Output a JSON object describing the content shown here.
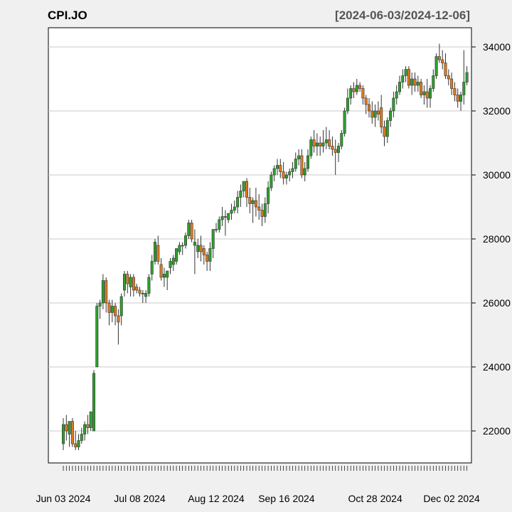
{
  "chart_data": {
    "type": "candlestick",
    "title": "CPI.JO",
    "date_range": "[2024-06-03/2024-12-06]",
    "ylim": [
      21000,
      34600
    ],
    "y_ticks": [
      22000,
      24000,
      26000,
      28000,
      30000,
      32000,
      34000
    ],
    "y_tick_labels": [
      "22000",
      "24000",
      "26000",
      "28000",
      "30000",
      "32000",
      "34000"
    ],
    "x_labels": [
      {
        "label": "Jun 03 2024",
        "index": 0
      },
      {
        "label": "Jul 08 2024",
        "index": 25
      },
      {
        "label": "Aug 12 2024",
        "index": 50
      },
      {
        "label": "Sep 16 2024",
        "index": 73
      },
      {
        "label": "Oct 28 2024",
        "index": 102
      },
      {
        "label": "Dec 02 2024",
        "index": 127
      }
    ],
    "grid": true,
    "up_color": "#2ca02c",
    "down_color": "#e07a20",
    "ohlc_fields": [
      "open",
      "high",
      "low",
      "close"
    ],
    "ohlc": [
      [
        21600,
        22400,
        21400,
        22200
      ],
      [
        22200,
        22500,
        21700,
        22000
      ],
      [
        21900,
        22300,
        21500,
        22300
      ],
      [
        22300,
        22400,
        21500,
        21600
      ],
      [
        21600,
        22000,
        21400,
        21500
      ],
      [
        21500,
        21900,
        21400,
        21700
      ],
      [
        21700,
        22100,
        21600,
        21900
      ],
      [
        21900,
        22300,
        21700,
        22200
      ],
      [
        22200,
        22500,
        21900,
        22100
      ],
      [
        22100,
        22600,
        22000,
        22600
      ],
      [
        22000,
        23900,
        22000,
        23800
      ],
      [
        24000,
        26000,
        24000,
        25900
      ],
      [
        25900,
        26100,
        25500,
        26000
      ],
      [
        26000,
        26900,
        25800,
        26700
      ],
      [
        26700,
        26800,
        25700,
        26000
      ],
      [
        26000,
        26100,
        25300,
        25700
      ],
      [
        25700,
        26100,
        25400,
        25900
      ],
      [
        25900,
        26000,
        25300,
        25600
      ],
      [
        25600,
        25800,
        24700,
        25400
      ],
      [
        25600,
        26300,
        25300,
        26200
      ],
      [
        26400,
        27000,
        26200,
        26900
      ],
      [
        26900,
        27000,
        26300,
        26600
      ],
      [
        26500,
        26900,
        26200,
        26800
      ],
      [
        26800,
        26900,
        26200,
        26400
      ],
      [
        26500,
        26600,
        26300,
        26400
      ],
      [
        26400,
        26500,
        26200,
        26300
      ],
      [
        26300,
        26400,
        26000,
        26300
      ],
      [
        26200,
        26400,
        26000,
        26300
      ],
      [
        26300,
        26900,
        26200,
        26800
      ],
      [
        26900,
        27500,
        26700,
        27300
      ],
      [
        27300,
        28000,
        27200,
        27900
      ],
      [
        27800,
        28100,
        27200,
        27300
      ],
      [
        27200,
        27400,
        26700,
        26800
      ],
      [
        26800,
        27100,
        26500,
        26900
      ],
      [
        26800,
        27000,
        26400,
        27000
      ],
      [
        27100,
        27400,
        26900,
        27300
      ],
      [
        27200,
        27500,
        27000,
        27400
      ],
      [
        27300,
        27700,
        27200,
        27700
      ],
      [
        27600,
        27900,
        27500,
        27800
      ],
      [
        27800,
        27900,
        27500,
        27800
      ],
      [
        27800,
        28200,
        27700,
        28100
      ],
      [
        28100,
        28600,
        28000,
        28500
      ],
      [
        28500,
        28600,
        27900,
        28000
      ],
      [
        27800,
        28300,
        26900,
        27900
      ],
      [
        27600,
        28000,
        27400,
        27800
      ],
      [
        27800,
        28100,
        27300,
        27600
      ],
      [
        27700,
        27800,
        27200,
        27500
      ],
      [
        27500,
        27600,
        27000,
        27300
      ],
      [
        27300,
        27900,
        27000,
        27700
      ],
      [
        27700,
        28300,
        27400,
        28300
      ],
      [
        28300,
        28500,
        28200,
        28300
      ],
      [
        28300,
        28700,
        28200,
        28600
      ],
      [
        28600,
        29000,
        28400,
        28700
      ],
      [
        28700,
        28900,
        28100,
        28700
      ],
      [
        28600,
        28800,
        28500,
        28800
      ],
      [
        28800,
        29100,
        28600,
        28900
      ],
      [
        28900,
        29200,
        28800,
        29000
      ],
      [
        29000,
        29500,
        28800,
        29300
      ],
      [
        29300,
        29700,
        29000,
        29500
      ],
      [
        29500,
        29800,
        29300,
        29800
      ],
      [
        29800,
        29900,
        29000,
        29300
      ],
      [
        29300,
        29600,
        28800,
        29100
      ],
      [
        29100,
        29300,
        28500,
        29200
      ],
      [
        29200,
        29600,
        28700,
        29000
      ],
      [
        29000,
        29400,
        28600,
        28900
      ],
      [
        28900,
        29100,
        28400,
        28700
      ],
      [
        28700,
        29300,
        28500,
        29100
      ],
      [
        29100,
        29800,
        28800,
        29600
      ],
      [
        29600,
        30100,
        29500,
        30000
      ],
      [
        30000,
        30300,
        29800,
        30200
      ],
      [
        30200,
        30500,
        30000,
        30300
      ],
      [
        30300,
        30500,
        29900,
        30100
      ],
      [
        30100,
        30400,
        29700,
        29900
      ],
      [
        29900,
        30100,
        29700,
        30000
      ],
      [
        30000,
        30200,
        29800,
        30100
      ],
      [
        30100,
        30400,
        29900,
        30200
      ],
      [
        30200,
        30700,
        30100,
        30500
      ],
      [
        30500,
        30800,
        30300,
        30600
      ],
      [
        30600,
        30800,
        29900,
        30000
      ],
      [
        30000,
        30400,
        29800,
        30200
      ],
      [
        30200,
        30800,
        30100,
        30600
      ],
      [
        30600,
        31200,
        30500,
        31100
      ],
      [
        31100,
        31400,
        30700,
        30900
      ],
      [
        30900,
        31300,
        30600,
        31000
      ],
      [
        31000,
        31200,
        30600,
        30900
      ],
      [
        30900,
        31400,
        30700,
        31000
      ],
      [
        31000,
        31500,
        30800,
        31100
      ],
      [
        31100,
        31400,
        30800,
        30900
      ],
      [
        30900,
        31200,
        30600,
        30800
      ],
      [
        30800,
        31100,
        30000,
        30700
      ],
      [
        30700,
        31000,
        30400,
        30900
      ],
      [
        30900,
        31400,
        30800,
        31300
      ],
      [
        31300,
        32100,
        31200,
        32000
      ],
      [
        32000,
        32700,
        31900,
        32400
      ],
      [
        32400,
        32800,
        32200,
        32700
      ],
      [
        32700,
        32900,
        32400,
        32600
      ],
      [
        32600,
        33000,
        32500,
        32800
      ],
      [
        32800,
        32900,
        32600,
        32700
      ],
      [
        32700,
        32800,
        32200,
        32400
      ],
      [
        32400,
        32500,
        31900,
        32200
      ],
      [
        32200,
        32400,
        31800,
        32000
      ],
      [
        32000,
        32300,
        31600,
        31800
      ],
      [
        31800,
        32200,
        31500,
        32000
      ],
      [
        32000,
        32300,
        31700,
        31900
      ],
      [
        32100,
        32500,
        31300,
        31500
      ],
      [
        31500,
        31700,
        30900,
        31200
      ],
      [
        31200,
        31800,
        31000,
        31700
      ],
      [
        31700,
        32100,
        31500,
        32000
      ],
      [
        32000,
        32600,
        31800,
        32400
      ],
      [
        32400,
        32800,
        32200,
        32600
      ],
      [
        32600,
        33100,
        32500,
        32900
      ],
      [
        32900,
        33300,
        32700,
        33100
      ],
      [
        33100,
        33400,
        32900,
        33300
      ],
      [
        33300,
        33400,
        32700,
        32800
      ],
      [
        32800,
        33200,
        32500,
        33000
      ],
      [
        33000,
        33200,
        32600,
        32800
      ],
      [
        32800,
        33100,
        32600,
        32900
      ],
      [
        32900,
        33000,
        32400,
        32500
      ],
      [
        32500,
        32800,
        32200,
        32600
      ],
      [
        32600,
        33000,
        32100,
        32400
      ],
      [
        32400,
        32800,
        32100,
        32700
      ],
      [
        32700,
        33300,
        32600,
        33100
      ],
      [
        33100,
        33800,
        33000,
        33700
      ],
      [
        33700,
        34100,
        33500,
        33600
      ],
      [
        33600,
        33900,
        33300,
        33500
      ],
      [
        33500,
        33800,
        33000,
        33100
      ],
      [
        33100,
        33300,
        32800,
        33000
      ],
      [
        33000,
        33200,
        32500,
        32700
      ],
      [
        32700,
        32900,
        32300,
        32500
      ],
      [
        32500,
        32700,
        32100,
        32300
      ],
      [
        32300,
        32600,
        32000,
        32500
      ],
      [
        32500,
        33900,
        32200,
        32900
      ],
      [
        32900,
        33400,
        32800,
        33200
      ]
    ]
  }
}
